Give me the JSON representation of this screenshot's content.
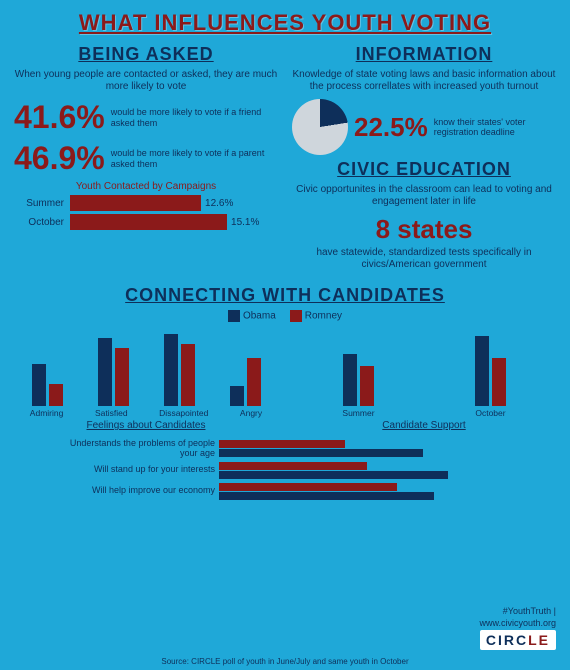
{
  "title": "WHAT INFLUENCES YOUTH VOTING",
  "being_asked": {
    "title": "BEING ASKED",
    "subtitle": "When young people are contacted or asked, they are much more likely to vote",
    "stat1_value": "41.6%",
    "stat1_desc": "would be more likely to vote if a friend asked them",
    "stat2_value": "46.9%",
    "stat2_desc": "would be more likely to vote if a parent asked them",
    "chart_title": "Youth Contacted by Campaigns",
    "bars": [
      {
        "label": "Summer",
        "value": 12.6,
        "display": "12.6%"
      },
      {
        "label": "October",
        "value": 15.1,
        "display": "15.1%"
      }
    ],
    "bar_max": 20,
    "bar_color": "#8b1a1a"
  },
  "information": {
    "title": "INFORMATION",
    "subtitle": "Knowledge of state voting laws and basic information about the process correllates with increased youth turnout",
    "pie_value": 22.5,
    "stat_value": "22.5%",
    "stat_desc": "know their states' voter registration deadline",
    "pie_fill_color": "#0e2f5a",
    "pie_bg_color": "#cfd6dc"
  },
  "civic": {
    "title": "CIVIC EDUCATION",
    "subtitle": "Civic opportunites in the classroom can lead to voting and engagement later in life",
    "stat_value": "8 states",
    "stat_desc": "have statewide, standardized tests specifically in civics/American government"
  },
  "connecting": {
    "title": "CONNECTING WITH CANDIDATES",
    "legend": [
      {
        "label": "Obama",
        "color": "#0e2f5a"
      },
      {
        "label": "Romney",
        "color": "#8b1a1a"
      }
    ],
    "feelings": {
      "caption": "Feelings about Candidates",
      "categories": [
        "Admiring",
        "Satisfied",
        "Dissapointed",
        "Angry"
      ],
      "obama": [
        42,
        68,
        72,
        20
      ],
      "romney": [
        22,
        58,
        62,
        48
      ],
      "max": 80
    },
    "support": {
      "caption": "Candidate Support",
      "categories": [
        "Summer",
        "October"
      ],
      "obama": [
        52,
        70
      ],
      "romney": [
        40,
        48
      ],
      "max": 80
    },
    "bottom": {
      "items": [
        {
          "label": "Understands the problems of people your age",
          "obama": 55,
          "romney": 34
        },
        {
          "label": "Will stand up for your interests",
          "obama": 62,
          "romney": 40
        },
        {
          "label": "Will help improve our economy",
          "obama": 58,
          "romney": 48
        }
      ],
      "max": 80
    }
  },
  "footer": {
    "hashtag": "#YouthTruth |",
    "url": "www.civicyouth.org",
    "logo_prefix": "CIRC",
    "logo_suffix": "LE",
    "source": "Source: CIRCLE poll of youth in June/July and same youth in October"
  },
  "colors": {
    "navy": "#0e2f5a",
    "maroon": "#8b1a1a",
    "bg": "#1fa8d8"
  }
}
